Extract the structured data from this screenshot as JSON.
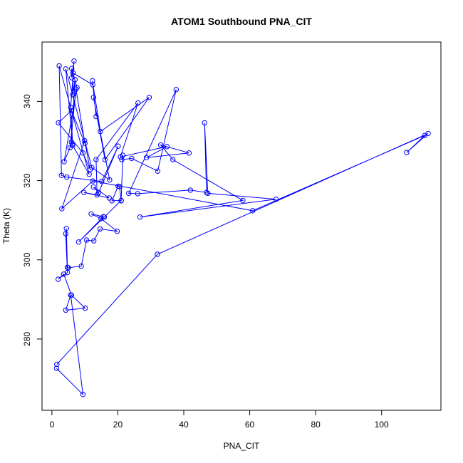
{
  "chart_data": {
    "type": "scatter",
    "title": "ATOM1 Southbound PNA_CIT",
    "xlabel": "PNA_CIT",
    "ylabel": "Theta (K)",
    "xlim": [
      -3,
      118
    ],
    "ylim": [
      262,
      355
    ],
    "x_ticks": [
      0,
      20,
      40,
      60,
      80,
      100
    ],
    "y_ticks": [
      280,
      300,
      320,
      340
    ],
    "x_tick_labels": [
      "0",
      "20",
      "40",
      "60",
      "80",
      "100"
    ],
    "y_tick_labels": [
      "280",
      "300",
      "320",
      "340"
    ],
    "grid": false,
    "legend": "none",
    "marker": "open-circle",
    "connected": true,
    "color": "#0000ff",
    "series": [
      {
        "points": [
          [
            1.4,
            272.6
          ],
          [
            9.4,
            266.0
          ],
          [
            5.7,
            291.1
          ],
          [
            4.2,
            287.3
          ],
          [
            10.1,
            287.8
          ],
          [
            5.9,
            291.1
          ],
          [
            3.6,
            296.4
          ],
          [
            1.9,
            295.1
          ],
          [
            4.7,
            296.8
          ],
          [
            4.2,
            306.6
          ],
          [
            4.4,
            307.9
          ],
          [
            4.7,
            298.1
          ],
          [
            5.0,
            298.0
          ],
          [
            8.9,
            298.4
          ],
          [
            10.5,
            305.0
          ],
          [
            12.7,
            304.8
          ],
          [
            14.6,
            307.8
          ],
          [
            19.8,
            307.2
          ],
          [
            14.9,
            310.4
          ],
          [
            11.9,
            311.6
          ],
          [
            15.6,
            310.9
          ],
          [
            8.1,
            304.5
          ],
          [
            15.9,
            310.8
          ],
          [
            21.0,
            315.0
          ],
          [
            18.2,
            314.9
          ],
          [
            20.1,
            318.6
          ],
          [
            20.5,
            318.5
          ],
          [
            21.0,
            314.9
          ],
          [
            21.5,
            326.4
          ],
          [
            21.2,
            325.3
          ],
          [
            24.2,
            325.6
          ],
          [
            32.1,
            322.4
          ],
          [
            37.7,
            343.0
          ],
          [
            23.3,
            316.8
          ],
          [
            26.0,
            316.7
          ],
          [
            42.0,
            317.6
          ],
          [
            46.9,
            317.0
          ],
          [
            46.3,
            334.6
          ],
          [
            47.3,
            316.8
          ],
          [
            68.0,
            315.3
          ],
          [
            26.7,
            310.8
          ],
          [
            57.9,
            315.0
          ],
          [
            36.7,
            325.3
          ],
          [
            33.0,
            329.0
          ],
          [
            41.6,
            327.0
          ],
          [
            28.7,
            325.8
          ],
          [
            34.9,
            328.6
          ],
          [
            20.8,
            326.0
          ],
          [
            26.1,
            339.6
          ],
          [
            13.4,
            325.3
          ],
          [
            13.7,
            316.4
          ],
          [
            9.7,
            317.0
          ],
          [
            17.4,
            315.6
          ],
          [
            12.6,
            318.4
          ],
          [
            14.2,
            317.0
          ],
          [
            20.1,
            328.7
          ],
          [
            15.1,
            319.8
          ],
          [
            4.5,
            320.9
          ],
          [
            2.9,
            321.3
          ],
          [
            2.2,
            349.0
          ],
          [
            11.3,
            321.6
          ],
          [
            6.3,
            328.9
          ],
          [
            5.9,
            329.7
          ],
          [
            7.0,
            345.5
          ],
          [
            6.3,
            341.7
          ],
          [
            6.4,
            347.2
          ],
          [
            12.4,
            344.2
          ],
          [
            13.4,
            336.2
          ],
          [
            12.3,
            345.2
          ],
          [
            14.7,
            332.4
          ],
          [
            29.5,
            341.0
          ],
          [
            16.1,
            325.3
          ],
          [
            12.6,
            341.0
          ],
          [
            17.5,
            320.2
          ],
          [
            12.1,
            323.3
          ],
          [
            4.2,
            348.2
          ],
          [
            6.3,
            329.3
          ],
          [
            5.7,
            338.5
          ],
          [
            6.7,
            350.2
          ],
          [
            6.0,
            346.0
          ],
          [
            6.0,
            348.3
          ],
          [
            7.6,
            343.5
          ],
          [
            3.7,
            324.8
          ],
          [
            5.5,
            328.3
          ],
          [
            7.3,
            343.1
          ],
          [
            10.0,
            329.4
          ],
          [
            5.9,
            337.7
          ],
          [
            2.0,
            334.6
          ],
          [
            9.4,
            327.0
          ],
          [
            11.6,
            322.8
          ],
          [
            9.9,
            330.1
          ],
          [
            3.0,
            312.9
          ],
          [
            12.4,
            319.9
          ],
          [
            60.9,
            312.4
          ],
          [
            113.1,
            331.4
          ],
          [
            107.6,
            327.1
          ],
          [
            114.1,
            331.9
          ],
          [
            32.0,
            301.4
          ],
          [
            1.5,
            273.6
          ]
        ]
      }
    ]
  }
}
